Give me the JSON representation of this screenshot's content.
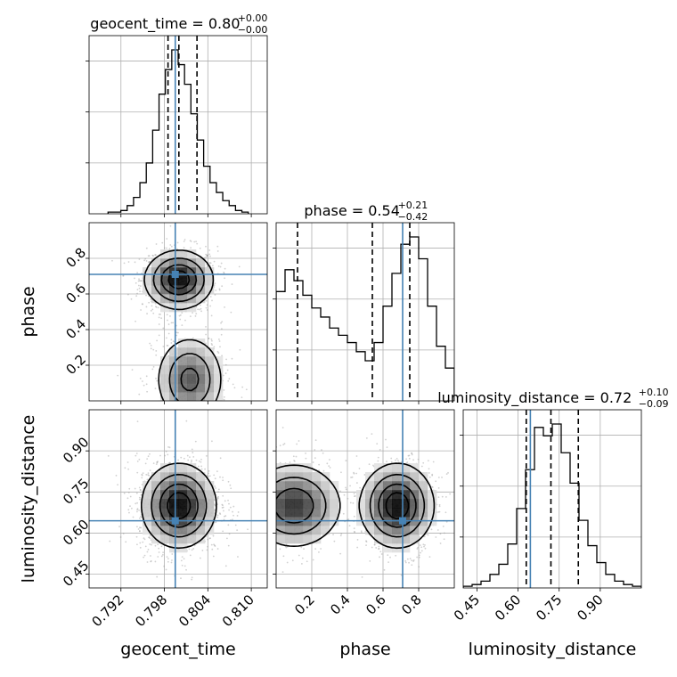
{
  "chart_data": {
    "type": "corner",
    "parameters": [
      "geocent_time",
      "phase",
      "luminosity_distance"
    ],
    "truths": {
      "geocent_time": 0.7995,
      "phase": 0.71,
      "luminosity_distance": 0.645
    },
    "colors": {
      "truth": "#4682b4",
      "hist": "#000000",
      "points": "#9a9a9a"
    },
    "grid": true,
    "titles": [
      {
        "param": "geocent_time",
        "label": "geocent_time",
        "value": "0.80",
        "upper": "+0.00",
        "lower": "−0.00",
        "quantiles": [
          0.7985,
          0.8,
          0.8025
        ]
      },
      {
        "param": "phase",
        "label": "phase",
        "value": "0.54",
        "upper": "+0.21",
        "lower": "−0.42",
        "quantiles": [
          0.12,
          0.54,
          0.75
        ]
      },
      {
        "param": "luminosity_distance",
        "label": "luminosity_distance",
        "value": "0.72",
        "upper": "+0.10",
        "lower": "−0.09",
        "quantiles": [
          0.63,
          0.72,
          0.82
        ]
      }
    ],
    "axes": {
      "geocent_time": {
        "range": [
          0.7876,
          0.8122
        ],
        "ticks": [
          "0.792",
          "0.798",
          "0.804",
          "0.810"
        ],
        "tick_values": [
          0.792,
          0.798,
          0.804,
          0.81
        ]
      },
      "phase": {
        "range": [
          0.0,
          1.0
        ],
        "ticks": [
          "0.2",
          "0.4",
          "0.6",
          "0.8"
        ],
        "tick_values": [
          0.2,
          0.4,
          0.6,
          0.8
        ]
      },
      "luminosity_distance": {
        "range": [
          0.4,
          1.05
        ],
        "ticks": [
          "0.45",
          "0.60",
          "0.75",
          "0.90"
        ],
        "tick_values": [
          0.45,
          0.6,
          0.75,
          0.9
        ]
      }
    },
    "marginals": {
      "geocent_time": {
        "bin_width": 0.00088,
        "counts": [
          1,
          1,
          2,
          5,
          10,
          19,
          31,
          51,
          73,
          88,
          100,
          91,
          79,
          61,
          45,
          29,
          19,
          13,
          8,
          5,
          2,
          1
        ]
      },
      "phase": {
        "bin_width": 0.05,
        "counts": [
          60,
          72,
          66,
          58,
          51,
          46,
          40,
          36,
          32,
          27,
          22,
          32,
          52,
          70,
          86,
          90,
          78,
          52,
          30,
          18
        ]
      },
      "luminosity_distance": {
        "bin_width": 0.0325,
        "counts": [
          1,
          2,
          4,
          8,
          14,
          26,
          47,
          70,
          95,
          90,
          97,
          80,
          62,
          40,
          25,
          15,
          8,
          4,
          2,
          1
        ]
      }
    },
    "density_modes": {
      "phase_vs_geocent_time": [
        {
          "x": 0.8,
          "y": 0.68,
          "sx": 0.0023,
          "sy": 0.08,
          "w": 0.6
        },
        {
          "x": 0.8015,
          "y": 0.12,
          "sx": 0.0023,
          "sy": 0.12,
          "w": 0.4
        }
      ],
      "luminosity_distance_vs_geocent_time": [
        {
          "x": 0.8,
          "y": 0.7,
          "sx": 0.0025,
          "sy": 0.075,
          "w": 1.0
        }
      ],
      "luminosity_distance_vs_phase": [
        {
          "x": 0.1,
          "y": 0.7,
          "sx": 0.13,
          "sy": 0.075,
          "w": 0.45
        },
        {
          "x": 0.68,
          "y": 0.7,
          "sx": 0.1,
          "sy": 0.075,
          "w": 0.55
        }
      ]
    }
  }
}
